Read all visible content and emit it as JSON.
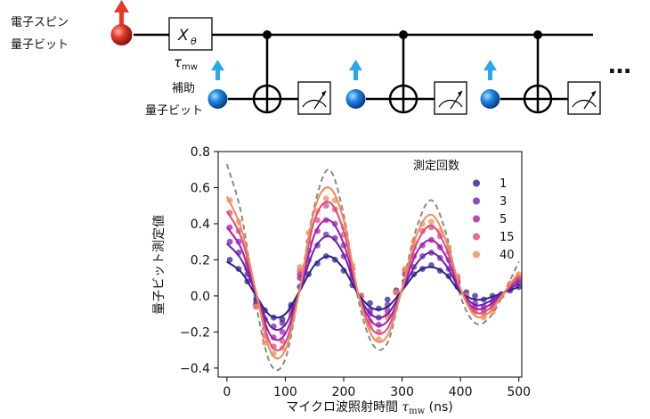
{
  "circuit": {
    "electron_label_line1": "電子スピン",
    "electron_label_line2": "量子ビット",
    "gate_label": "X",
    "gate_subscript": "θ",
    "tau_symbol": "τ",
    "tau_subscript": "mw",
    "ancilla_label_line1": "補助",
    "ancilla_label_line2": "量子ビット",
    "ellipsis": "…",
    "colors": {
      "electron_spin": "#e8382c",
      "ancilla_spin": "#1e88e5",
      "ancilla_arrow": "#29a8ea"
    }
  },
  "chart_data": {
    "type": "line",
    "ylabel": "量子ビット測定値",
    "xlabel_prefix": "マイクロ波照射時間 ",
    "xlabel_tau": "τ",
    "xlabel_sub": "mw",
    "xlabel_unit": " (ns)",
    "xlim": [
      -15,
      505
    ],
    "ylim": [
      -0.45,
      0.8
    ],
    "x_ticks": [
      0,
      100,
      200,
      300,
      400,
      500
    ],
    "y_ticks": [
      -0.4,
      -0.2,
      0.0,
      0.2,
      0.4,
      0.6,
      0.8
    ],
    "y_tick_labels": [
      "−0.4",
      "−0.2",
      "0.0",
      "0.2",
      "0.4",
      "0.6",
      "0.8"
    ],
    "legend_title": "測定回数",
    "legend_position": "top-right",
    "reference": {
      "style": "dashed",
      "color": "#888888",
      "x": [
        0,
        25,
        50,
        75,
        100,
        125,
        150,
        175,
        200,
        225,
        250,
        275,
        300,
        325,
        350,
        375,
        400,
        425,
        450,
        475,
        500
      ],
      "y": [
        0.73,
        0.45,
        -0.05,
        -0.38,
        -0.35,
        0.05,
        0.5,
        0.7,
        0.45,
        -0.02,
        -0.27,
        -0.26,
        0.05,
        0.38,
        0.53,
        0.35,
        0.0,
        -0.15,
        -0.12,
        0.02,
        0.19
      ]
    },
    "series": [
      {
        "name": "1",
        "color": "#2b1e8f",
        "fit_x": [
          0,
          25,
          50,
          75,
          100,
          125,
          150,
          175,
          200,
          225,
          250,
          275,
          300,
          325,
          350,
          375,
          400,
          425,
          450,
          475,
          500
        ],
        "fit_y": [
          0.19,
          0.13,
          0.0,
          -0.11,
          -0.1,
          0.03,
          0.17,
          0.22,
          0.15,
          0.01,
          -0.07,
          -0.06,
          0.03,
          0.13,
          0.16,
          0.12,
          0.02,
          -0.02,
          -0.01,
          0.02,
          0.05
        ],
        "points_x": [
          5,
          20,
          35,
          50,
          65,
          80,
          95,
          110,
          125,
          140,
          155,
          170,
          185,
          200,
          215,
          230,
          245,
          260,
          275,
          290,
          305,
          320,
          335,
          350,
          365,
          380,
          395,
          410,
          425,
          440,
          455,
          470,
          485,
          500
        ],
        "points_y": [
          0.2,
          0.15,
          0.08,
          -0.02,
          -0.08,
          -0.12,
          -0.13,
          -0.05,
          0.05,
          0.12,
          0.18,
          0.22,
          0.2,
          0.14,
          0.06,
          0.0,
          -0.04,
          -0.07,
          -0.02,
          0.03,
          0.08,
          0.12,
          0.15,
          0.17,
          0.14,
          0.11,
          0.05,
          0.02,
          0.0,
          -0.02,
          0.0,
          0.01,
          0.03,
          0.05
        ]
      },
      {
        "name": "3",
        "color": "#6a1fa8",
        "fit_x": [
          0,
          25,
          50,
          75,
          100,
          125,
          150,
          175,
          200,
          225,
          250,
          275,
          300,
          325,
          350,
          375,
          400,
          425,
          450,
          475,
          500
        ],
        "fit_y": [
          0.29,
          0.2,
          0.01,
          -0.17,
          -0.16,
          0.03,
          0.26,
          0.33,
          0.23,
          0.01,
          -0.11,
          -0.1,
          0.03,
          0.18,
          0.24,
          0.17,
          0.03,
          -0.05,
          -0.03,
          0.02,
          0.07
        ],
        "points_x": [
          5,
          20,
          35,
          50,
          65,
          80,
          95,
          110,
          125,
          140,
          155,
          170,
          185,
          200,
          215,
          230,
          245,
          260,
          275,
          290,
          305,
          320,
          335,
          350,
          365,
          380,
          395,
          410,
          425,
          440,
          455,
          470,
          485,
          500
        ],
        "points_y": [
          0.3,
          0.24,
          0.12,
          -0.04,
          -0.13,
          -0.17,
          -0.15,
          -0.06,
          0.1,
          0.2,
          0.28,
          0.34,
          0.32,
          0.22,
          0.1,
          0.0,
          -0.08,
          -0.12,
          -0.05,
          0.02,
          0.08,
          0.16,
          0.22,
          0.24,
          0.21,
          0.15,
          0.07,
          0.0,
          -0.04,
          -0.06,
          -0.03,
          0.0,
          0.04,
          0.07
        ]
      },
      {
        "name": "5",
        "color": "#a21caf",
        "fit_x": [
          0,
          25,
          50,
          75,
          100,
          125,
          150,
          175,
          200,
          225,
          250,
          275,
          300,
          325,
          350,
          375,
          400,
          425,
          450,
          475,
          500
        ],
        "fit_y": [
          0.38,
          0.26,
          0.01,
          -0.22,
          -0.21,
          0.03,
          0.34,
          0.42,
          0.29,
          0.01,
          -0.15,
          -0.14,
          0.03,
          0.24,
          0.31,
          0.22,
          0.03,
          -0.07,
          -0.05,
          0.02,
          0.09
        ],
        "points_x": [
          5,
          20,
          35,
          50,
          65,
          80,
          95,
          110,
          125,
          140,
          155,
          170,
          185,
          200,
          215,
          230,
          245,
          260,
          275,
          290,
          305,
          320,
          335,
          350,
          365,
          380,
          395,
          410,
          425,
          440,
          455,
          470,
          485,
          500
        ],
        "points_y": [
          0.38,
          0.3,
          0.15,
          -0.05,
          -0.18,
          -0.23,
          -0.2,
          -0.08,
          0.12,
          0.25,
          0.36,
          0.42,
          0.4,
          0.28,
          0.12,
          0.0,
          -0.1,
          -0.16,
          -0.08,
          0.02,
          0.12,
          0.22,
          0.28,
          0.31,
          0.27,
          0.2,
          0.08,
          0.0,
          -0.06,
          -0.08,
          -0.05,
          0.0,
          0.05,
          0.09
        ]
      },
      {
        "name": "15",
        "color": "#dc4a7a",
        "fit_x": [
          0,
          25,
          50,
          75,
          100,
          125,
          150,
          175,
          200,
          225,
          250,
          275,
          300,
          325,
          350,
          375,
          400,
          425,
          450,
          475,
          500
        ],
        "fit_y": [
          0.47,
          0.32,
          0.02,
          -0.27,
          -0.26,
          0.04,
          0.42,
          0.52,
          0.36,
          0.01,
          -0.19,
          -0.18,
          0.04,
          0.29,
          0.39,
          0.27,
          0.04,
          -0.09,
          -0.07,
          0.02,
          0.11
        ],
        "points_x": [
          5,
          20,
          35,
          50,
          65,
          80,
          95,
          110,
          125,
          140,
          155,
          170,
          185,
          200,
          215,
          230,
          245,
          260,
          275,
          290,
          305,
          320,
          335,
          350,
          365,
          380,
          395,
          410,
          425,
          440,
          455,
          470,
          485,
          500
        ],
        "points_y": [
          0.46,
          0.36,
          0.18,
          -0.06,
          -0.22,
          -0.28,
          -0.25,
          -0.1,
          0.14,
          0.3,
          0.42,
          0.5,
          0.48,
          0.34,
          0.15,
          0.0,
          -0.14,
          -0.2,
          -0.1,
          0.02,
          0.14,
          0.27,
          0.36,
          0.38,
          0.33,
          0.24,
          0.1,
          0.0,
          -0.08,
          -0.1,
          -0.07,
          0.0,
          0.06,
          0.1
        ]
      },
      {
        "name": "40",
        "color": "#f08a55",
        "fit_x": [
          0,
          25,
          50,
          75,
          100,
          125,
          150,
          175,
          200,
          225,
          250,
          275,
          300,
          325,
          350,
          375,
          400,
          425,
          450,
          475,
          500
        ],
        "fit_y": [
          0.55,
          0.37,
          0.02,
          -0.31,
          -0.3,
          0.04,
          0.48,
          0.6,
          0.42,
          0.01,
          -0.23,
          -0.22,
          0.04,
          0.34,
          0.45,
          0.31,
          0.04,
          -0.11,
          -0.09,
          0.02,
          0.13
        ],
        "points_x": [
          5,
          20,
          35,
          50,
          65,
          80,
          95,
          110,
          125,
          140,
          155,
          170,
          185,
          200,
          215,
          230,
          245,
          260,
          275,
          290,
          305,
          320,
          335,
          350,
          365,
          380,
          395,
          410,
          425,
          440,
          455,
          470,
          485,
          500
        ],
        "points_y": [
          0.53,
          0.41,
          0.2,
          -0.06,
          -0.26,
          -0.32,
          -0.29,
          -0.11,
          0.16,
          0.35,
          0.47,
          0.54,
          0.53,
          0.38,
          0.17,
          0.0,
          -0.17,
          -0.24,
          -0.12,
          0.02,
          0.15,
          0.3,
          0.4,
          0.41,
          0.36,
          0.27,
          0.11,
          0.0,
          -0.09,
          -0.12,
          -0.09,
          0.0,
          0.07,
          0.12
        ]
      }
    ]
  }
}
